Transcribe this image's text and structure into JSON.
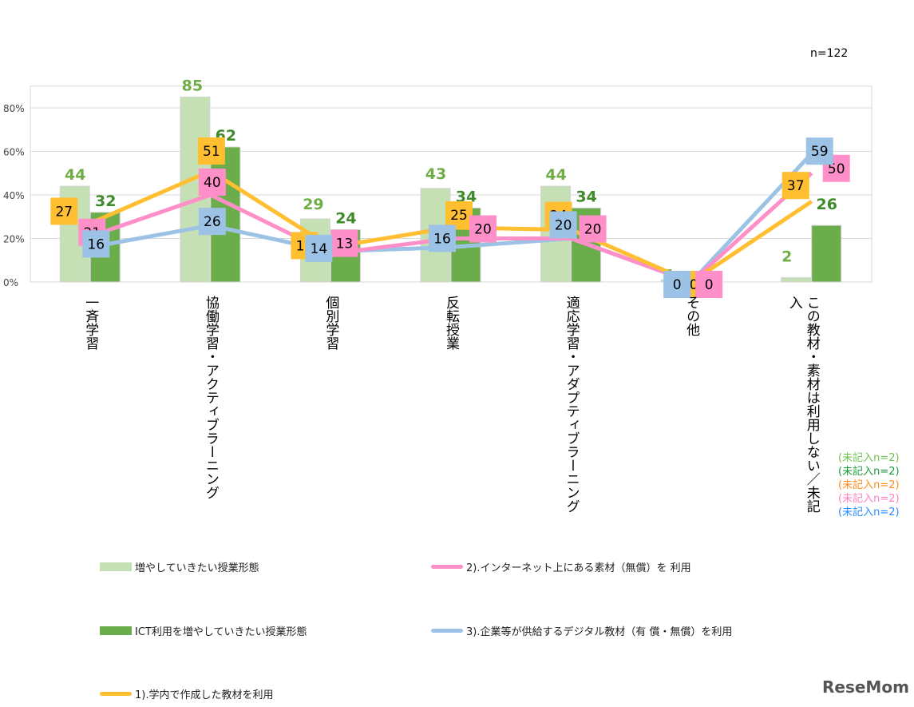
{
  "chart_data": {
    "type": "bar+line",
    "n_label": "n=122",
    "ylim": [
      0,
      90
    ],
    "yticks": [
      "0%",
      "20%",
      "40%",
      "60%",
      "80%"
    ],
    "grid": true,
    "categories": [
      "一斉学習",
      "協働学習・アクティブラーニング",
      "個別学習",
      "反転授業",
      "適応学習・アダプティブラーニング",
      "その他",
      "この教材・素材は利用しない／未記入"
    ],
    "series": [
      {
        "name": "増やしていきたい授業形態",
        "kind": "bar",
        "color": "#c5e0b4",
        "label_color": "#70ad47",
        "values": [
          44,
          85,
          29,
          43,
          44,
          1,
          2
        ]
      },
      {
        "name": "ICT利用を増やしていきたい授業形態",
        "kind": "bar",
        "color": "#6aad4a",
        "label_color": "#3f8a2a",
        "values": [
          32,
          62,
          24,
          34,
          34,
          0,
          26
        ]
      },
      {
        "name": "1).学内で作成した教材を利用",
        "kind": "line",
        "color": "#ffbf30",
        "values": [
          27,
          51,
          16,
          25,
          24,
          0,
          37
        ]
      },
      {
        "name": "2).インターネット上にある素材（無償）を 利用",
        "kind": "line",
        "color": "#ff8fc8",
        "values": [
          21,
          40,
          13,
          20,
          20,
          0,
          50
        ]
      },
      {
        "name": "3).企業等が供給するデジタル教材（有 償・無償）を利用",
        "kind": "line",
        "color": "#9cc3e5",
        "values": [
          16,
          26,
          14,
          16,
          20,
          0,
          59
        ]
      }
    ],
    "notes": [
      {
        "text": "(未記入n=2)",
        "color": "#70c050"
      },
      {
        "text": "(未記入n=2)",
        "color": "#1a9a3a"
      },
      {
        "text": "(未記入n=2)",
        "color": "#ff8c1a"
      },
      {
        "text": "(未記入n=2)",
        "color": "#ff80c0"
      },
      {
        "text": "(未記入n=2)",
        "color": "#2a8aff"
      }
    ]
  },
  "watermark": "ReseMom"
}
